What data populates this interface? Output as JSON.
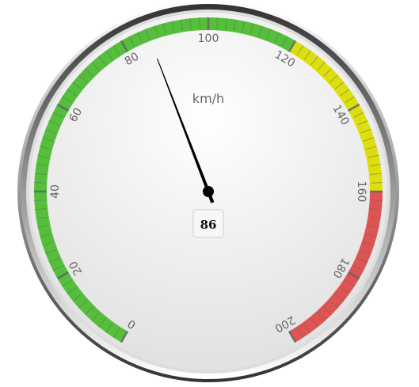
{
  "chart_data": {
    "type": "gauge",
    "min": 0,
    "max": 200,
    "value": 86,
    "value_label": "86",
    "unit": "km/h",
    "tick_interval": 20,
    "minor_tick_interval": 2,
    "tick_labels": [
      "0",
      "20",
      "40",
      "60",
      "80",
      "100",
      "120",
      "140",
      "160",
      "180",
      "200"
    ],
    "bands": [
      {
        "from": 0,
        "to": 120,
        "color": "#55BF3B"
      },
      {
        "from": 120,
        "to": 160,
        "color": "#DDDF0D"
      },
      {
        "from": 160,
        "to": 200,
        "color": "#DF5353"
      }
    ],
    "colors": {
      "needle": "#000000",
      "tick": "#666666",
      "label": "#666666",
      "frame_dark": "#333333",
      "face": "#f4f4f4"
    }
  }
}
